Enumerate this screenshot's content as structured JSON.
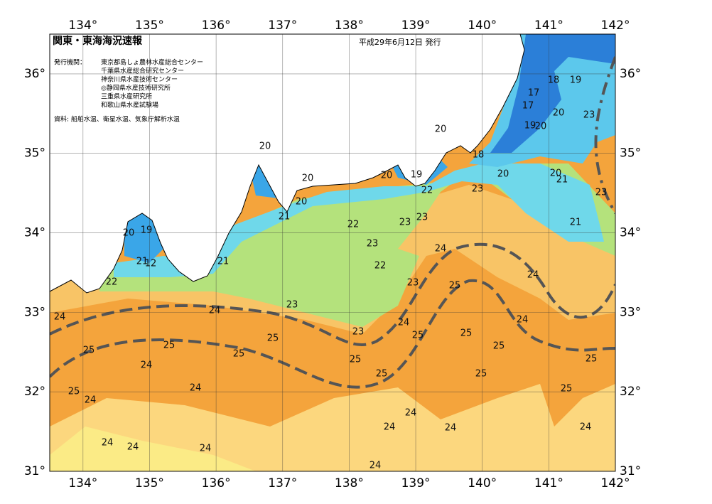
{
  "header": {
    "title": "関東・東海海況速報",
    "date": "平成29年6月12日 発行",
    "issuer_heading": "発行機関：",
    "issuers": [
      "東京都島しょ農林水産総合センター",
      "千葉県水産総合研究センター",
      "神奈川県水産技術センター",
      "◎静岡県水産技術研究所",
      "三重県水産研究所",
      "和歌山県水産試験場"
    ],
    "source": "資料: 船舶水温、衛星水温、気象庁解析水温"
  },
  "map": {
    "xlim": [
      133.5,
      142
    ],
    "ylim": [
      31,
      36.5
    ],
    "xticks": [
      {
        "value": 134,
        "label": "134°"
      },
      {
        "value": 135,
        "label": "135°"
      },
      {
        "value": 136,
        "label": "136°"
      },
      {
        "value": 137,
        "label": "137°"
      },
      {
        "value": 138,
        "label": "138°"
      },
      {
        "value": 139,
        "label": "139°"
      },
      {
        "value": 140,
        "label": "140°"
      },
      {
        "value": 141,
        "label": "141°"
      },
      {
        "value": 142,
        "label": "142°"
      }
    ],
    "yticks": [
      {
        "value": 31,
        "label": "31°"
      },
      {
        "value": 32,
        "label": "32°"
      },
      {
        "value": 33,
        "label": "33°"
      },
      {
        "value": 34,
        "label": "34°"
      },
      {
        "value": 35,
        "label": "35°"
      },
      {
        "value": 36,
        "label": "36°"
      }
    ],
    "contour_labels": [
      20,
      20,
      20,
      21,
      20,
      19,
      21,
      12,
      22,
      21,
      22,
      23,
      23,
      23,
      22,
      24,
      23,
      25,
      24,
      24,
      23,
      24,
      24,
      23,
      24,
      25,
      25,
      25,
      25,
      25,
      25,
      25,
      25,
      25,
      25,
      25,
      25,
      24,
      24,
      25,
      24,
      24,
      24,
      24,
      24,
      24,
      24,
      24,
      24,
      20,
      20,
      19,
      22,
      18,
      23,
      20,
      20,
      21,
      21,
      23,
      23,
      20,
      19,
      20,
      17,
      17,
      18,
      19
    ]
  }
}
